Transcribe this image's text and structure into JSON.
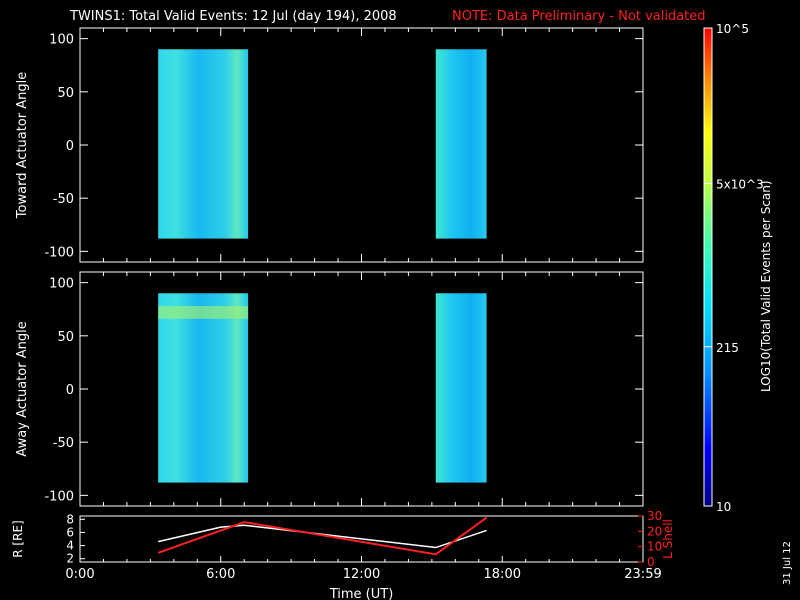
{
  "title": "TWINS1: Total Valid Events: 12 Jul (day 194), 2008",
  "note": "NOTE: Data Preliminary - Not validated",
  "date_stamp": "31 Jul 12",
  "colorbar": {
    "label": "LOG10(Total Valid Events per Scan)",
    "ticks": [
      "10",
      "215",
      "5x10^3",
      "10^5"
    ],
    "range": [
      10,
      100000
    ],
    "scale": "log"
  },
  "chart_data": [
    {
      "type": "heatmap",
      "ylabel": "Toward Actuator Angle",
      "ylim": [
        -110,
        110
      ],
      "yticks": [
        100,
        50,
        0,
        -50,
        -100
      ],
      "xlim_hours": [
        0,
        24
      ],
      "blocks": [
        {
          "start": "03:20",
          "end": "07:10",
          "angle_range": [
            -88,
            90
          ]
        },
        {
          "start": "15:10",
          "end": "17:20",
          "angle_range": [
            -88,
            90
          ]
        }
      ]
    },
    {
      "type": "heatmap",
      "ylabel": "Away Actuator Angle",
      "ylim": [
        -110,
        110
      ],
      "yticks": [
        100,
        50,
        0,
        -50,
        -100
      ],
      "xlim_hours": [
        0,
        24
      ],
      "blocks": [
        {
          "start": "03:20",
          "end": "07:10",
          "angle_range": [
            -88,
            90
          ]
        },
        {
          "start": "15:10",
          "end": "17:20",
          "angle_range": [
            -88,
            90
          ]
        }
      ]
    },
    {
      "type": "line",
      "xlabel": "Time (UT)",
      "xticks": [
        "0:00",
        "6:00",
        "12:00",
        "18:00",
        "23:59"
      ],
      "ylabel_left": "R [RE]",
      "ylabel_right": "L Shell",
      "yticks_left": [
        8,
        6,
        4,
        2
      ],
      "yticks_right": [
        30,
        20,
        10,
        0
      ],
      "ylim_left": [
        1.5,
        8.5
      ],
      "ylim_right": [
        0,
        30
      ],
      "series": [
        {
          "axis": "left",
          "color": "#ffffff",
          "x": [
            "03:20",
            "06:00",
            "07:00",
            "15:10",
            "17:20"
          ],
          "y": [
            4.6,
            6.8,
            7.1,
            3.7,
            6.3
          ]
        },
        {
          "axis": "right",
          "color": "#ff2020",
          "x": [
            "03:20",
            "07:00",
            "15:10",
            "17:20"
          ],
          "y": [
            6,
            26,
            5,
            29
          ]
        }
      ]
    }
  ]
}
